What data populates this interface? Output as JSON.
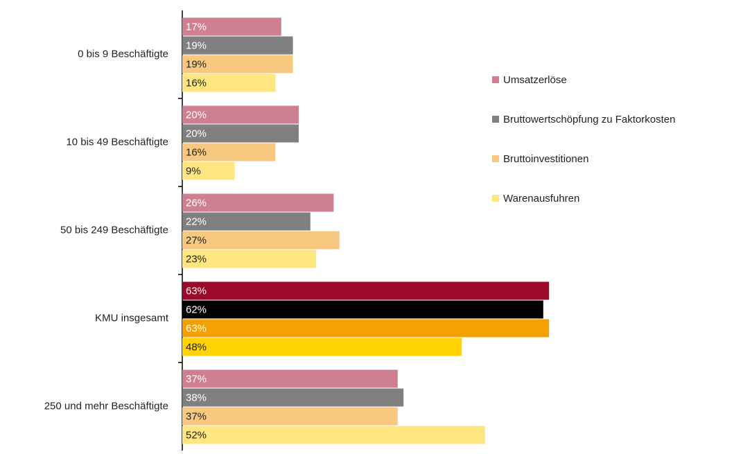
{
  "chart_data": {
    "type": "hbar",
    "categories": [
      "0 bis 9 Beschäftigte",
      "10 bis 49 Beschäftigte",
      "50 bis 249 Beschäftigte",
      "KMU insgesamt",
      "250 und mehr Beschäftigte"
    ],
    "series": [
      {
        "name": "Umsatzerlöse",
        "color": "#cf8090",
        "colors": [
          "#cf8090",
          "#cf8090",
          "#cf8090",
          "#9b0a2a",
          "#cf8090"
        ],
        "values": [
          17,
          20,
          26,
          63,
          37
        ],
        "value_labels": [
          "17%",
          "20%",
          "26%",
          "63%",
          "37%"
        ]
      },
      {
        "name": "Bruttowertschöpfung zu Faktorkosten",
        "color": "#808080",
        "colors": [
          "#808080",
          "#808080",
          "#808080",
          "#000000",
          "#808080"
        ],
        "values": [
          19,
          20,
          22,
          62,
          38
        ],
        "value_labels": [
          "19%",
          "20%",
          "22%",
          "62%",
          "38%"
        ]
      },
      {
        "name": "Bruttoinvestitionen",
        "color": "#f8c880",
        "colors": [
          "#f8c880",
          "#f8c880",
          "#f8c880",
          "#f4a000",
          "#f8c880"
        ],
        "values": [
          19,
          16,
          27,
          63,
          37
        ],
        "value_labels": [
          "19%",
          "16%",
          "27%",
          "63%",
          "37%"
        ]
      },
      {
        "name": "Warenausfuhren",
        "color": "#ffe680",
        "colors": [
          "#ffe680",
          "#ffe680",
          "#ffe680",
          "#ffd200",
          "#ffe680"
        ],
        "values": [
          16,
          9,
          23,
          48,
          52
        ],
        "value_labels": [
          "16%",
          "9%",
          "23%",
          "48%",
          "52%"
        ]
      }
    ],
    "legend": "right"
  }
}
